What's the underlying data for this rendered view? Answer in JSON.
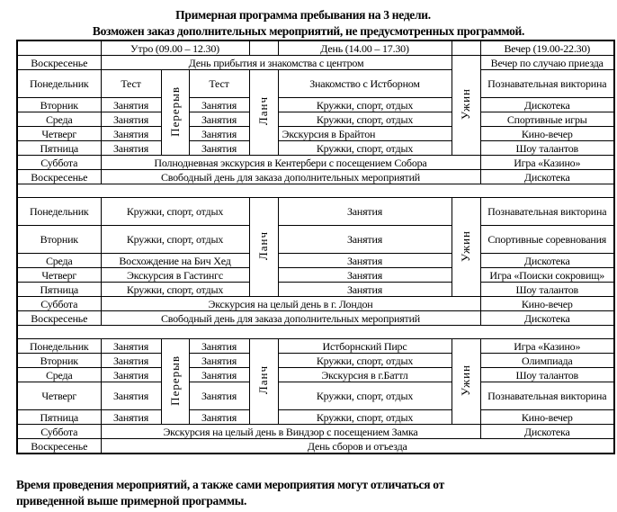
{
  "title": "Примерная программа пребывания на 3 недели.",
  "subtitle": "Возможен заказ дополнительных мероприятий, не предусмотренных программой.",
  "header": {
    "morning": "Утро  (09.00 – 12.30)",
    "day": "День  (14.00 – 17.30)",
    "evening": "Вечер  (19.00-22.30)"
  },
  "labels": {
    "break": "Перерыв",
    "lunch": "Ланч",
    "dinner": "Ужин"
  },
  "days": {
    "sun": "Воскресенье",
    "mon": "Понедельник",
    "tue": "Вторник",
    "wed": "Среда",
    "thu": "Четверг",
    "fri": "Пятница",
    "sat": "Суббота"
  },
  "week1": {
    "sun1": {
      "day": "День прибытия и знакомства с центром",
      "evening": "Вечер по случаю приезда"
    },
    "mon": {
      "m1": "Тест",
      "m2": "Тест",
      "day": "Знакомство с Истборном",
      "evening": "Познавательная викторина"
    },
    "tue": {
      "m1": "Занятия",
      "m2": "Занятия",
      "day": "Кружки, спорт, отдых",
      "evening": "Дискотека"
    },
    "wed": {
      "m1": "Занятия",
      "m2": "Занятия",
      "day": "Кружки, спорт, отдых",
      "evening": "Спортивные игры"
    },
    "thu": {
      "m1": "Занятия",
      "m2": "Занятия",
      "day": "Экскурсия в  Брайтон",
      "evening": "Кино-вечер"
    },
    "fri": {
      "m1": "Занятия",
      "m2": "Занятия",
      "day": "Кружки, спорт, отдых",
      "evening": "Шоу талантов"
    },
    "sat": {
      "day": "Полнодневная экскурсия в Кентербери с посещением Собора",
      "evening": "Игра «Казино»"
    },
    "sun2": {
      "day": "Свободный день для заказа дополнительных  мероприятий",
      "evening": "Дискотека"
    }
  },
  "week2": {
    "mon": {
      "morning": "Кружки, спорт, отдых",
      "day": "Занятия",
      "evening": "Познавательная викторина"
    },
    "tue": {
      "morning": "Кружки, спорт, отдых",
      "day": "Занятия",
      "evening": "Спортивные соревнования"
    },
    "wed": {
      "morning": "Восхождение на  Бич Хед",
      "day": "Занятия",
      "evening": "Дискотека"
    },
    "thu": {
      "morning": "Экскурсия  в Гастингс",
      "day": "Занятия",
      "evening": "Игра «Поиски сокровищ»"
    },
    "fri": {
      "morning": "Кружки, спорт, отдых",
      "day": "Занятия",
      "evening": "Шоу талантов"
    },
    "sat": {
      "day": "Экскурсия на целый день в г. Лондон",
      "evening": "Кино-вечер"
    },
    "sun": {
      "day": "Свободный день для заказа дополнительных  мероприятий",
      "evening": "Дискотека"
    }
  },
  "week3": {
    "mon": {
      "m1": "Занятия",
      "m2": "Занятия",
      "day": "Истборнский Пирс",
      "evening": "Игра «Казино»"
    },
    "tue": {
      "m1": "Занятия",
      "m2": "Занятия",
      "day": "Кружки, спорт, отдых",
      "evening": "Олимпиада"
    },
    "wed": {
      "m1": "Занятия",
      "m2": "Занятия",
      "day": "Экскурсия в г.Баттл",
      "evening": "Шоу талантов"
    },
    "thu": {
      "m1": "Занятия",
      "m2": "Занятия",
      "day": "Кружки, спорт, отдых",
      "evening": "Познавательная викторина"
    },
    "fri": {
      "m1": "Занятия",
      "m2": "Занятия",
      "day": "Кружки, спорт, отдых",
      "evening": "Кино-вечер"
    },
    "sat": {
      "day": "Экскурсия на целый день в Виндзор  с посещением Замка",
      "evening": "Дискотека"
    },
    "sun": {
      "day": "День сборов и  отъезда"
    }
  },
  "footer": {
    "line1": "Время проведения мероприятий, а также сами мероприятия могут отличаться от",
    "line2": "приведенной выше примерной программы."
  }
}
